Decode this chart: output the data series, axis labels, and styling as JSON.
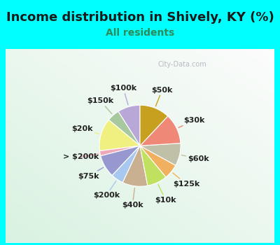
{
  "title": "Income distribution in Shively, KY (%)",
  "subtitle": "All residents",
  "title_color": "#1a1a1a",
  "subtitle_color": "#2e8b57",
  "outer_bg": "#00ffff",
  "chart_bg_color": "#dff0e8",
  "watermark": "City-Data.com",
  "labels": [
    "$100k",
    "$150k",
    "$20k",
    "> $200k",
    "$75k",
    "$200k",
    "$40k",
    "$10k",
    "$125k",
    "$60k",
    "$30k",
    "$50k"
  ],
  "values": [
    9,
    5,
    13,
    2,
    9,
    5,
    10,
    8,
    6,
    9,
    12,
    12
  ],
  "colors": [
    "#b8a8d8",
    "#a8c8a0",
    "#f0f080",
    "#f0a8b8",
    "#9898d0",
    "#a8c8f0",
    "#c8b090",
    "#c0e060",
    "#f0b060",
    "#c0c0a8",
    "#f08878",
    "#c8a020"
  ],
  "startangle": 90,
  "label_fontsize": 8,
  "label_color": "#222222",
  "title_fontsize": 13,
  "subtitle_fontsize": 10
}
